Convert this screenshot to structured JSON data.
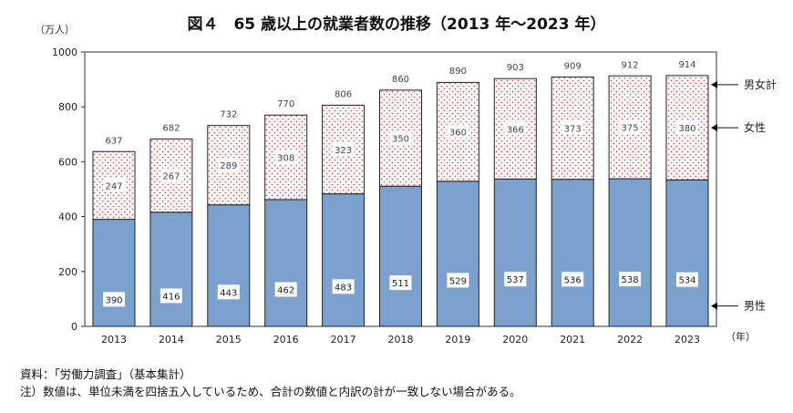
{
  "chart_data": {
    "type": "bar",
    "stacked": true,
    "title": "図４　65 歳以上の就業者数の推移（2013 年～2023 年）",
    "ylabel": "（万人）",
    "xlabel": "（年）",
    "ylim": [
      0,
      1000
    ],
    "yticks": [
      0,
      200,
      400,
      600,
      800,
      1000
    ],
    "grid": false,
    "categories": [
      "2013",
      "2014",
      "2015",
      "2016",
      "2017",
      "2018",
      "2019",
      "2020",
      "2021",
      "2022",
      "2023"
    ],
    "series": [
      {
        "name": "男性",
        "color": "#7ba1cf",
        "values": [
          390,
          416,
          443,
          462,
          483,
          511,
          529,
          537,
          536,
          538,
          534
        ]
      },
      {
        "name": "女性",
        "color": "#fbeeee",
        "pattern": "red-dots",
        "values": [
          247,
          267,
          289,
          308,
          323,
          350,
          360,
          366,
          373,
          375,
          380
        ]
      }
    ],
    "totals_label": "男女計",
    "totals": [
      637,
      682,
      732,
      770,
      806,
      860,
      890,
      903,
      909,
      912,
      914
    ],
    "legend_placement": "right"
  },
  "notes": {
    "source": "資料：「労働力調査」（基本集計）",
    "note": "注）数値は、単位未満を四捨五入しているため、合計の数値と内訳の計が一致しない場合がある。"
  }
}
